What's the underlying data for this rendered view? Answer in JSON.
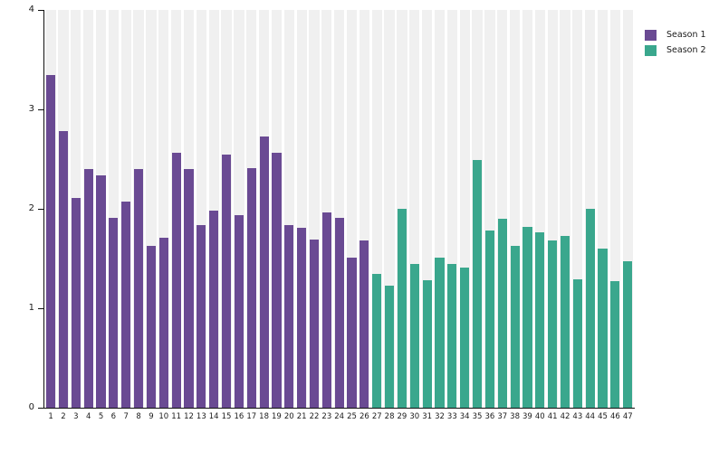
{
  "chart_data": {
    "type": "bar",
    "title": "",
    "xlabel": "",
    "ylabel": "",
    "ylim": [
      0,
      4
    ],
    "ytick_labels": [
      "0",
      "1",
      "2",
      "3",
      "4"
    ],
    "grid": false,
    "plot_background_band_color": "#f0f0f0",
    "legend_position": "top-right",
    "categories": [
      "1",
      "2",
      "3",
      "4",
      "5",
      "6",
      "7",
      "8",
      "9",
      "10",
      "11",
      "12",
      "13",
      "14",
      "15",
      "16",
      "17",
      "18",
      "19",
      "20",
      "21",
      "22",
      "23",
      "24",
      "25",
      "26",
      "27",
      "28",
      "29",
      "30",
      "31",
      "32",
      "33",
      "34",
      "35",
      "36",
      "37",
      "38",
      "39",
      "40",
      "41",
      "42",
      "43",
      "44",
      "45",
      "46",
      "47"
    ],
    "values": [
      3.35,
      2.78,
      2.11,
      2.4,
      2.34,
      1.91,
      2.07,
      2.4,
      1.63,
      1.71,
      2.56,
      2.4,
      1.84,
      1.98,
      2.55,
      1.94,
      2.41,
      2.73,
      2.56,
      1.84,
      1.81,
      1.69,
      1.96,
      1.91,
      1.51,
      1.68,
      1.35,
      1.23,
      2.0,
      1.45,
      1.28,
      1.51,
      1.45,
      1.41,
      2.49,
      1.78,
      1.9,
      1.63,
      1.82,
      1.76,
      1.68,
      1.73,
      1.29,
      2.0,
      1.6,
      1.27,
      1.47
    ],
    "series": [
      {
        "name": "Season 1",
        "color": "#6a4a93",
        "category_start": "1",
        "category_end": "26",
        "count": 26
      },
      {
        "name": "Season 2",
        "color": "#3aa78d",
        "category_start": "27",
        "category_end": "47",
        "count": 21
      }
    ]
  },
  "legend": {
    "items": [
      {
        "label": "Season 1",
        "color": "#6a4a93"
      },
      {
        "label": "Season 2",
        "color": "#3aa78d"
      }
    ]
  },
  "colors": {
    "season1": "#6a4a93",
    "season2": "#3aa78d",
    "background_band": "#f0f0f0",
    "axis": "#111111",
    "text": "#1a1a1a",
    "page_background": "#ffffff"
  }
}
